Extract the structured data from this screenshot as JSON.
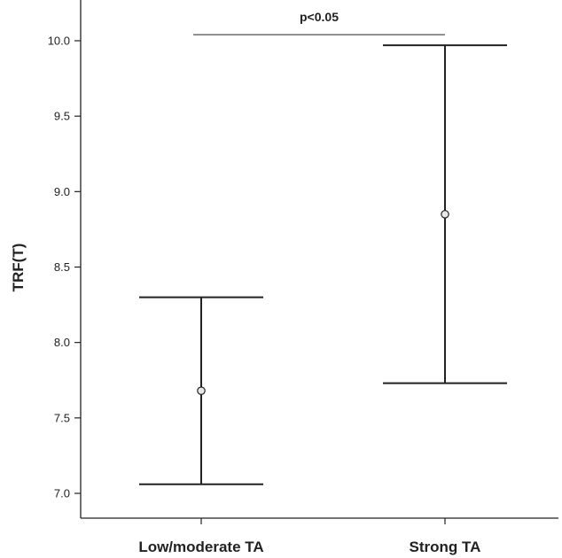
{
  "chart_data": {
    "type": "errorbar",
    "ylabel": "TRF(T)",
    "ylim": [
      6.95,
      10.17
    ],
    "yticks": [
      "7.0",
      "7.5",
      "8.0",
      "8.5",
      "9.0",
      "9.5",
      "10.0"
    ],
    "categories": [
      "Low/moderate TA",
      "Strong TA"
    ],
    "points": [
      {
        "category": "Low/moderate TA",
        "mean": 7.68,
        "lower": 7.06,
        "upper": 8.3
      },
      {
        "category": "Strong TA",
        "mean": 8.85,
        "lower": 7.73,
        "upper": 9.97
      }
    ],
    "annotation": {
      "text": "p<0.05",
      "y": 10.04
    },
    "grid": false
  }
}
